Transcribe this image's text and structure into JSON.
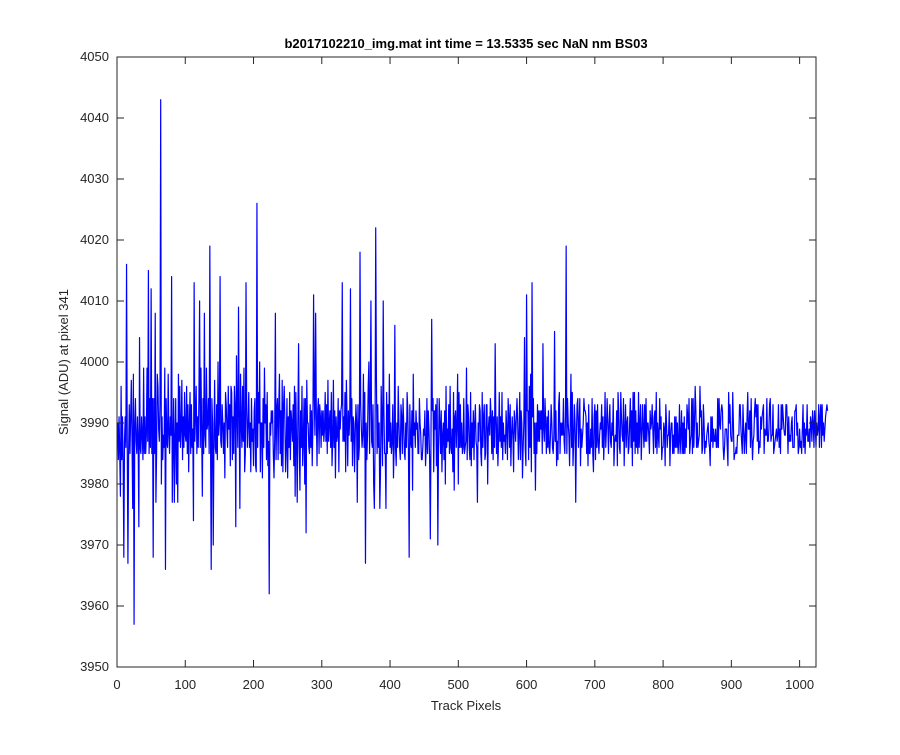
{
  "chart_data": {
    "type": "line",
    "title": "b2017102210_img.mat int time = 13.5335 sec  NaN nm BS03",
    "xlabel": "Track Pixels",
    "ylabel": "Signal (ADU) at pixel 341",
    "xlim": [
      0,
      1024
    ],
    "ylim": [
      3950,
      4050
    ],
    "xticks": [
      0,
      100,
      200,
      300,
      400,
      500,
      600,
      700,
      800,
      900,
      1000
    ],
    "yticks": [
      3950,
      3960,
      3970,
      3980,
      3990,
      4000,
      4010,
      4020,
      4030,
      4040,
      4050
    ],
    "xtick_labels": [
      "0",
      "100",
      "200",
      "300",
      "400",
      "500",
      "600",
      "700",
      "800",
      "900",
      "1000"
    ],
    "ytick_labels": [
      "3950",
      "3960",
      "3970",
      "3980",
      "3990",
      "4000",
      "4010",
      "4020",
      "4030",
      "4040",
      "4050"
    ],
    "grid": false,
    "line_color": "#0000ff",
    "series": [
      {
        "x_start": 1,
        "x_step": 1,
        "values": [
          3990,
          3984,
          3991,
          3985,
          3978,
          3996,
          3984,
          3991,
          3984,
          3968,
          3987,
          3991,
          3986,
          4016,
          3987,
          3967,
          3985,
          3993,
          3985,
          3991,
          3997,
          3987,
          3976,
          3998,
          3957,
          3990,
          3994,
          3987,
          3985,
          3991,
          3987,
          3973,
          4004,
          3986,
          3985,
          3991,
          3988,
          3984,
          3999,
          3985,
          3991,
          3985,
          3988,
          3999,
          3987,
          4015,
          3985,
          3994,
          3986,
          4012,
          3985,
          3994,
          3968,
          3994,
          3985,
          4008,
          3977,
          3985,
          3998,
          3996,
          3989,
          3987,
          3993,
          4043,
          3980,
          3991,
          3984,
          3988,
          3986,
          3999,
          3966,
          3994,
          3987,
          3986,
          3998,
          3988,
          3985,
          3991,
          3988,
          4014,
          3977,
          3986,
          3994,
          3977,
          3987,
          3994,
          3980,
          3990,
          3977,
          3998,
          3987,
          3996,
          3986,
          3989,
          3997,
          3984,
          3991,
          3986,
          3995,
          3988,
          3987,
          3996,
          3985,
          3993,
          3982,
          3990,
          3995,
          3985,
          3993,
          3986,
          3989,
          3974,
          4013,
          3987,
          3991,
          3996,
          3985,
          3991,
          3986,
          3994,
          4010,
          3986,
          3999,
          3989,
          3978,
          3994,
          3985,
          4008,
          3988,
          3986,
          3999,
          3989,
          3990,
          3994,
          3985,
          4019,
          3988,
          3966,
          3994,
          3990,
          3970,
          3987,
          3997,
          3986,
          3985,
          3993,
          3984,
          4000,
          3988,
          3990,
          4014,
          3987,
          3986,
          3993,
          3990,
          3985,
          3990,
          3981,
          3995,
          3993,
          3989,
          3986,
          3996,
          3989,
          3993,
          3983,
          3996,
          3995,
          3984,
          3991,
          3985,
          3996,
          3993,
          3973,
          4001,
          3992,
          3986,
          4009,
          3991,
          3976,
          3998,
          3990,
          3986,
          3996,
          3987,
          3999,
          3982,
          3985,
          4013,
          3992,
          3986,
          3990,
          3995,
          3986,
          3990,
          3982,
          3994,
          3987,
          3989,
          3983,
          3992,
          3994,
          3983,
          3982,
          4026,
          3986,
          3995,
          3990,
          4000,
          3982,
          3990,
          3990,
          3981,
          3994,
          3986,
          3999,
          3990,
          3993,
          3984,
          3995,
          3983,
          3987,
          3962,
          3990,
          3988,
          3992,
          3990,
          3992,
          3985,
          3981,
          3987,
          4008,
          3984,
          3992,
          3994,
          3984,
          3993,
          3998,
          3985,
          3992,
          3983,
          3997,
          3982,
          3993,
          3996,
          3990,
          3982,
          3986,
          3994,
          3981,
          3991,
          3986,
          3995,
          3984,
          3992,
          3990,
          3987,
          3993,
          3983,
          3996,
          3978,
          3995,
          3987,
          3977,
          3991,
          4003,
          3986,
          3979,
          3992,
          3986,
          3996,
          3983,
          3987,
          3994,
          3980,
          3994,
          3972,
          3997,
          3990,
          3990,
          3986,
          3985,
          3993,
          3986,
          3992,
          3983,
          3990,
          4011,
          3994,
          3988,
          4008,
          3992,
          3983,
          3992,
          3994,
          3985,
          3993,
          3991,
          3986,
          3992,
          3988,
          3992,
          3987,
          3989,
          3995,
          3987,
          3993,
          3985,
          3997,
          3987,
          3990,
          3992,
          3986,
          3995,
          3983,
          3987,
          3997,
          3986,
          3992,
          3981,
          3991,
          3987,
          3988,
          3994,
          3982,
          3992,
          3989,
          3992,
          3993,
          4013,
          3987,
          3991,
          3987,
          3995,
          3982,
          3997,
          3991,
          3983,
          3992,
          3988,
          3991,
          4012,
          3987,
          3994,
          3983,
          3991,
          3990,
          3982,
          3988,
          3993,
          3990,
          3977,
          3993,
          3984,
          3986,
          4018,
          3993,
          3989,
          3986,
          3988,
          3998,
          3986,
          3995,
          3967,
          3990,
          3984,
          3988,
          3996,
          4000,
          3985,
          3994,
          4010,
          3987,
          3986,
          3993,
          3980,
          3976,
          3986,
          4022,
          3998,
          3985,
          3993,
          3986,
          3990,
          3976,
          3982,
          3996,
          3990,
          3983,
          4010,
          3992,
          3985,
          3985,
          3976,
          3995,
          3985,
          3993,
          3987,
          3998,
          3986,
          3990,
          3985,
          3987,
          3993,
          3981,
          3986,
          4006,
          3986,
          3983,
          3990,
          3986,
          3996,
          3990,
          3986,
          3984,
          3993,
          3991,
          3985,
          3994,
          3990,
          3985,
          3984,
          3990,
          3986,
          3995,
          3992,
          3985,
          3968,
          3993,
          3987,
          3986,
          3992,
          3979,
          3998,
          3988,
          3990,
          3986,
          3992,
          3989,
          3990,
          3985,
          3985,
          3994,
          3990,
          3988,
          3984,
          3984,
          3986,
          3989,
          3988,
          3992,
          3983,
          3986,
          3994,
          3985,
          3992,
          3989,
          3984,
          3971,
          3988,
          4007,
          3992,
          3994,
          3982,
          3992,
          3989,
          3993,
          3983,
          3994,
          3970,
          3986,
          3994,
          3990,
          3985,
          3992,
          3982,
          3988,
          3990,
          3984,
          3992,
          3980,
          3996,
          3986,
          3989,
          3987,
          3993,
          3985,
          3996,
          3986,
          3985,
          3989,
          3982,
          3995,
          3979,
          3991,
          3992,
          3986,
          3990,
          3998,
          3980,
          3995,
          3986,
          3993,
          3986,
          3990,
          3985,
          3986,
          3994,
          3985,
          3986,
          3987,
          3999,
          3984,
          3993,
          3991,
          3986,
          3984,
          3995,
          3983,
          3990,
          3986,
          3992,
          3984,
          3990,
          3993,
          3987,
          3986,
          3977,
          3990,
          3987,
          3993,
          3992,
          3985,
          3983,
          3995,
          3986,
          3991,
          3993,
          3984,
          3985,
          3993,
          3993,
          3980,
          3989,
          3991,
          3988,
          3994,
          3991,
          3985,
          3992,
          3984,
          3991,
          3986,
          4003,
          3990,
          3985,
          3991,
          3983,
          3987,
          3995,
          3987,
          3991,
          3986,
          3995,
          3984,
          3990,
          3987,
          3988,
          3985,
          3992,
          3989,
          3984,
          3994,
          3991,
          3986,
          3993,
          3983,
          3988,
          3991,
          3988,
          3982,
          3992,
          3990,
          3987,
          3991,
          3994,
          3990,
          3984,
          3988,
          3995,
          3984,
          3992,
          3990,
          3981,
          3986,
          3990,
          4004,
          3986,
          3983,
          4011,
          3992,
          3992,
          3984,
          3996,
          3986,
          3998,
          3982,
          4013,
          3991,
          3994,
          3985,
          3990,
          3979,
          3990,
          3985,
          3993,
          3987,
          3992,
          3987,
          3992,
          3989,
          3992,
          3985,
          4003,
          3989,
          3987,
          3994,
          3990,
          3985,
          3991,
          3986,
          3992,
          3986,
          3985,
          3988,
          3993,
          3990,
          3986,
          3985,
          3988,
          4005,
          3987,
          3992,
          3983,
          3987,
          3984,
          3993,
          3995,
          3985,
          3990,
          3988,
          3990,
          3988,
          3994,
          3987,
          3985,
          3991,
          4019,
          3985,
          3994,
          3990,
          3988,
          3983,
          3990,
          3998,
          3986,
          3995,
          3983,
          3987,
          3993,
          3990,
          3977,
          3988,
          3993,
          3994,
          3986,
          3990,
          3994,
          3983,
          3989,
          3986,
          3988,
          3990,
          3994,
          3992,
          3992,
          3991,
          3985,
          3990,
          3983,
          3993,
          3985,
          3985,
          3989,
          3986,
          3994,
          3985,
          3982,
          3991,
          3993,
          3984,
          3992,
          3986,
          3993,
          3987,
          3985,
          3988,
          3990,
          3989,
          3993,
          3986,
          3991,
          3984,
          3988,
          3995,
          3986,
          3989,
          3994,
          3990,
          3985,
          3990,
          3993,
          3987,
          3986,
          3990,
          3988,
          3994,
          3983,
          3987,
          3988,
          3987,
          3992,
          3983,
          3995,
          3992,
          3986,
          3985,
          3995,
          3991,
          3988,
          3987,
          3994,
          3983,
          3989,
          3993,
          3986,
          3990,
          3991,
          3985,
          3986,
          3990,
          3994,
          3986,
          3992,
          3983,
          3995,
          3987,
          3995,
          3985,
          3992,
          3986,
          3990,
          3985,
          3995,
          3986,
          3990,
          3993,
          3984,
          3988,
          3993,
          3989,
          3986,
          3993,
          3987,
          3994,
          3987,
          3990,
          3990,
          3988,
          3985,
          3992,
          3989,
          3990,
          3993,
          3989,
          3985,
          3991,
          3992,
          3986,
          3995,
          3985,
          3990,
          3988,
          3986,
          3994,
          3989,
          3991,
          3984,
          3986,
          3986,
          3990,
          3989,
          3983,
          3993,
          3990,
          3986,
          3988,
          3988,
          3992,
          3983,
          3988,
          3990,
          3990,
          3985,
          3988,
          3985,
          3991,
          3986,
          3991,
          3986,
          3990,
          3985,
          3987,
          3993,
          3985,
          3988,
          3992,
          3985,
          3990,
          3985,
          3991,
          3985,
          3989,
          3986,
          3993,
          3991,
          3989,
          3994,
          3985,
          3987,
          3988,
          3994,
          3985,
          3994,
          3986,
          3990,
          3996,
          3992,
          3986,
          3990,
          3986,
          3987,
          3988,
          3996,
          3991,
          3992,
          3985,
          3986,
          3993,
          3990,
          3985,
          3987,
          3986,
          3988,
          3989,
          3990,
          3987,
          3986,
          3983,
          3991,
          3987,
          3991,
          3986,
          3989,
          3987,
          3987,
          3989,
          3986,
          3986,
          3994,
          3986,
          3994,
          3990,
          3989,
          3992,
          3993,
          3992,
          3986,
          3984,
          3986,
          3989,
          3989,
          3989,
          3986,
          3983,
          3995,
          3990,
          3993,
          3988,
          3987,
          3987,
          3995,
          3990,
          3984,
          3985,
          3985,
          3986,
          3985,
          3988,
          3988,
          3988,
          3993,
          3993,
          3989,
          3987,
          3985,
          3993,
          3989,
          3985,
          3988,
          3990,
          3985,
          3991,
          3995,
          3989,
          3989,
          3992,
          3986,
          3994,
          3988,
          3984,
          3987,
          3988,
          3992,
          3994,
          3991,
          3993,
          3987,
          3993,
          3985,
          3987,
          3986,
          3991,
          3989,
          3991,
          3992,
          3993,
          3985,
          3989,
          3988,
          3988,
          3994,
          3987,
          3987,
          3989,
          3993,
          3994,
          3987,
          3988,
          3988,
          3993,
          3985,
          3986,
          3987,
          3988,
          3989,
          3987,
          3988,
          3993,
          3986,
          3989,
          3985,
          3993,
          3989,
          3993,
          3991,
          3989,
          3988,
          3988,
          3993,
          3993,
          3990,
          3985,
          3991,
          3987,
          3988,
          3987,
          3990,
          3991,
          3986,
          3986,
          3986,
          3992,
          3992,
          3993,
          3988,
          3990,
          3985,
          3986,
          3989,
          3986,
          3987,
          3985,
          3989,
          3993,
          3986,
          3990,
          3985,
          3989,
          3988,
          3993,
          3987,
          3987,
          3989,
          3986,
          3991,
          3990,
          3987,
          3992,
          3990,
          3986,
          3992,
          3989,
          3986,
          3990,
          3988,
          3989,
          3993,
          3986,
          3991,
          3993,
          3986,
          3993,
          3988,
          3990,
          3987,
          3989,
          3991,
          3992,
          3993,
          3992
        ]
      }
    ]
  }
}
